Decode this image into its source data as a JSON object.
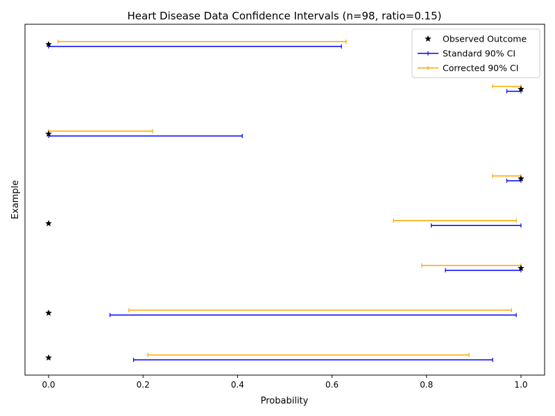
{
  "chart_data": {
    "type": "errorbar",
    "title": "Heart Disease Data Confidence Intervals (n=98, ratio=0.15)",
    "xlabel": "Probability",
    "ylabel": "Example",
    "xlim": [
      -0.05,
      1.05
    ],
    "x_ticks": [
      0.0,
      0.2,
      0.4,
      0.6,
      0.8,
      1.0
    ],
    "x_tick_labels": [
      "0.0",
      "0.2",
      "0.4",
      "0.6",
      "0.8",
      "1.0"
    ],
    "grid": false,
    "legend_position": "top-right",
    "legend": [
      {
        "name": "Observed Outcome",
        "color": "#000000",
        "marker": "star"
      },
      {
        "name": "Standard 90% CI",
        "color": "#0000ff",
        "marker": "line"
      },
      {
        "name": "Corrected 90% CI",
        "color": "#ffa500",
        "marker": "line"
      }
    ],
    "examples": [
      {
        "observed": 0,
        "standard": [
          0.0,
          0.62
        ],
        "corrected": [
          0.02,
          0.63
        ]
      },
      {
        "observed": 1,
        "standard": [
          0.97,
          1.0
        ],
        "corrected": [
          0.94,
          1.0
        ]
      },
      {
        "observed": 0,
        "standard": [
          0.0,
          0.41
        ],
        "corrected": [
          0.0,
          0.22
        ]
      },
      {
        "observed": 1,
        "standard": [
          0.97,
          1.0
        ],
        "corrected": [
          0.94,
          1.0
        ]
      },
      {
        "observed": 0,
        "standard": [
          0.81,
          1.0
        ],
        "corrected": [
          0.73,
          0.99
        ]
      },
      {
        "observed": 1,
        "standard": [
          0.84,
          1.0
        ],
        "corrected": [
          0.79,
          1.0
        ]
      },
      {
        "observed": 0,
        "standard": [
          0.13,
          0.99
        ],
        "corrected": [
          0.17,
          0.98
        ]
      },
      {
        "observed": 0,
        "standard": [
          0.18,
          0.94
        ],
        "corrected": [
          0.21,
          0.89
        ]
      }
    ]
  }
}
